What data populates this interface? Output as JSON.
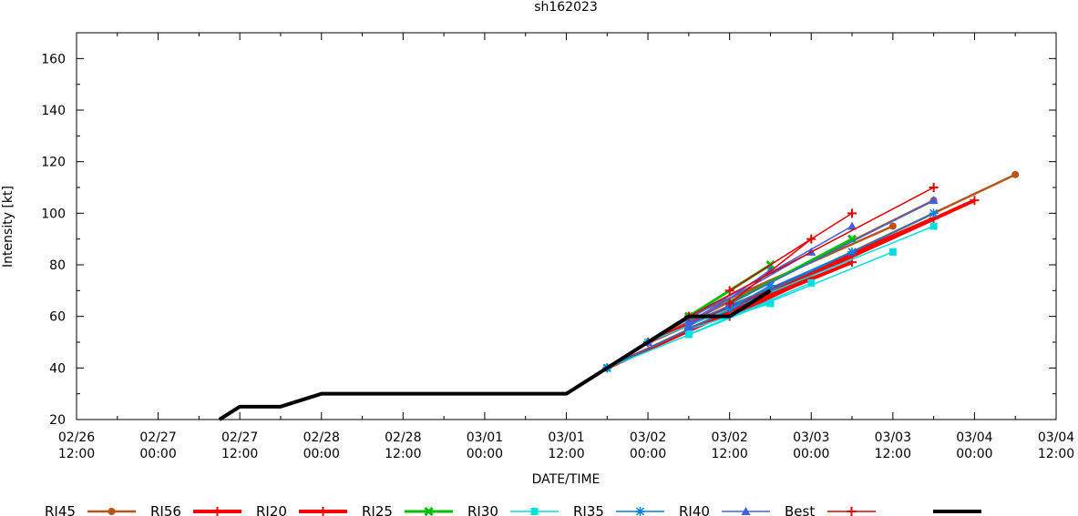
{
  "chart_data": {
    "type": "line",
    "title": "sh162023",
    "xlabel": "DATE/TIME",
    "ylabel": "Intensity [kt]",
    "x_unit": "hours",
    "xlim": [
      "02/26 12:00",
      "03/04 12:00"
    ],
    "ylim": [
      20,
      170
    ],
    "x_ticks": [
      {
        "x": "02/26 12:00",
        "line1": "02/26",
        "line2": "12:00"
      },
      {
        "x": "02/27 00:00",
        "line1": "02/27",
        "line2": "00:00"
      },
      {
        "x": "02/27 12:00",
        "line1": "02/27",
        "line2": "12:00"
      },
      {
        "x": "02/28 00:00",
        "line1": "02/28",
        "line2": "00:00"
      },
      {
        "x": "02/28 12:00",
        "line1": "02/28",
        "line2": "12:00"
      },
      {
        "x": "03/01 00:00",
        "line1": "03/01",
        "line2": "00:00"
      },
      {
        "x": "03/01 12:00",
        "line1": "03/01",
        "line2": "12:00"
      },
      {
        "x": "03/02 00:00",
        "line1": "03/02",
        "line2": "00:00"
      },
      {
        "x": "03/02 12:00",
        "line1": "03/02",
        "line2": "12:00"
      },
      {
        "x": "03/03 00:00",
        "line1": "03/03",
        "line2": "00:00"
      },
      {
        "x": "03/03 12:00",
        "line1": "03/03",
        "line2": "12:00"
      },
      {
        "x": "03/04 00:00",
        "line1": "03/04",
        "line2": "00:00"
      },
      {
        "x": "03/04 12:00",
        "line1": "03/04",
        "line2": "12:00"
      }
    ],
    "y_ticks": [
      20,
      40,
      60,
      80,
      100,
      120,
      140,
      160
    ],
    "grid": false,
    "legend_position": "bottom",
    "series": [
      {
        "name": "RI45",
        "color": "#b8541a",
        "marker": "circle",
        "width": 2.5,
        "lines": [
          [
            [
              "03/01 18:00",
              40
            ],
            [
              "03/04 06:00",
              115
            ]
          ],
          [
            [
              "03/02 00:00",
              50
            ],
            [
              "03/03 18:00",
              105
            ]
          ],
          [
            [
              "03/02 06:00",
              60
            ],
            [
              "03/03 12:00",
              95
            ]
          ]
        ]
      },
      {
        "name": "RI56",
        "color": "#ff0000",
        "marker": "plus",
        "width": 4,
        "lines": [
          [
            [
              "03/01 18:00",
              40
            ],
            [
              "03/04 00:00",
              105
            ]
          ],
          [
            [
              "03/02 00:00",
              50
            ],
            [
              "03/03 18:00",
              98
            ]
          ],
          [
            [
              "03/02 06:00",
              55
            ],
            [
              "03/03 06:00",
              81
            ]
          ],
          [
            [
              "03/02 12:00",
              60
            ],
            [
              "03/03 00:00",
              75
            ]
          ]
        ]
      },
      {
        "name": "RI25",
        "color": "#00c000",
        "marker": "cross",
        "width": 3,
        "lines": [
          [
            [
              "03/02 06:00",
              60
            ],
            [
              "03/02 18:00",
              80
            ]
          ],
          [
            [
              "03/02 12:00",
              65
            ],
            [
              "03/03 06:00",
              90
            ]
          ]
        ]
      },
      {
        "name": "RI30",
        "color": "#00e0e0",
        "marker": "square",
        "width": 1.5,
        "lines": [
          [
            [
              "03/01 18:00",
              40
            ],
            [
              "03/03 12:00",
              85
            ]
          ],
          [
            [
              "03/02 06:00",
              53
            ],
            [
              "03/03 00:00",
              73
            ]
          ],
          [
            [
              "03/02 06:00",
              55
            ],
            [
              "03/02 18:00",
              65
            ]
          ],
          [
            [
              "03/02 00:00",
              50
            ],
            [
              "03/03 18:00",
              95
            ]
          ]
        ]
      },
      {
        "name": "RI35",
        "color": "#0080e0",
        "marker": "star",
        "width": 1.5,
        "lines": [
          [
            [
              "03/01 18:00",
              40
            ],
            [
              "03/03 18:00",
              100
            ]
          ],
          [
            [
              "03/02 06:00",
              57
            ],
            [
              "03/03 06:00",
              85
            ]
          ],
          [
            [
              "03/02 12:00",
              63
            ],
            [
              "03/02 18:00",
              72
            ]
          ]
        ]
      },
      {
        "name": "RI40",
        "color": "#4060e0",
        "marker": "triangle",
        "width": 1.5,
        "lines": [
          [
            [
              "03/02 00:00",
              50
            ],
            [
              "03/03 06:00",
              95
            ]
          ],
          [
            [
              "03/02 06:00",
              58
            ],
            [
              "03/03 00:00",
              85
            ]
          ],
          [
            [
              "03/02 12:00",
              65
            ],
            [
              "03/03 18:00",
              105
            ]
          ],
          [
            [
              "03/02 06:00",
              56
            ],
            [
              "03/02 18:00",
              78
            ]
          ]
        ]
      },
      {
        "name": "Best",
        "color": "#e00000",
        "marker": "plus",
        "width": 1.5,
        "lines": [
          [
            [
              "03/02 12:00",
              70
            ],
            [
              "03/03 06:00",
              100
            ]
          ],
          [
            [
              "03/02 06:00",
              60
            ],
            [
              "03/03 18:00",
              110
            ]
          ],
          [
            [
              "03/02 12:00",
              65
            ],
            [
              "03/03 00:00",
              90
            ]
          ]
        ]
      }
    ],
    "best_track": {
      "color": "#000000",
      "width": 4,
      "points": [
        [
          "02/27 09:00",
          20
        ],
        [
          "02/27 12:00",
          25
        ],
        [
          "02/27 18:00",
          25
        ],
        [
          "02/28 00:00",
          30
        ],
        [
          "02/28 06:00",
          30
        ],
        [
          "02/28 12:00",
          30
        ],
        [
          "02/28 18:00",
          30
        ],
        [
          "03/01 00:00",
          30
        ],
        [
          "03/01 06:00",
          30
        ],
        [
          "03/01 12:00",
          30
        ],
        [
          "03/01 18:00",
          40
        ],
        [
          "03/02 00:00",
          50
        ],
        [
          "03/02 06:00",
          60
        ],
        [
          "03/02 12:00",
          60
        ],
        [
          "03/02 18:00",
          70
        ]
      ]
    },
    "legend": [
      {
        "label": "RI45",
        "color": "#b8541a",
        "marker": "circle",
        "width": 2.5
      },
      {
        "label": "RI56",
        "color": "#ff0000",
        "marker": "plus",
        "width": 4
      },
      {
        "label": "RI20",
        "color": "#ff0000",
        "marker": "plus",
        "width": 4
      },
      {
        "label": "RI25",
        "color": "#00c000",
        "marker": "cross",
        "width": 3
      },
      {
        "label": "RI30",
        "color": "#00e0e0",
        "marker": "square",
        "width": 1.5
      },
      {
        "label": "RI35",
        "color": "#0080e0",
        "marker": "star",
        "width": 1.5
      },
      {
        "label": "RI40",
        "color": "#4060e0",
        "marker": "triangle",
        "width": 1.5
      },
      {
        "label": "Best",
        "color": "#e00000",
        "marker": "plus",
        "width": 1.5
      },
      {
        "label": "",
        "color": "#000000",
        "marker": "none",
        "width": 4
      }
    ]
  }
}
